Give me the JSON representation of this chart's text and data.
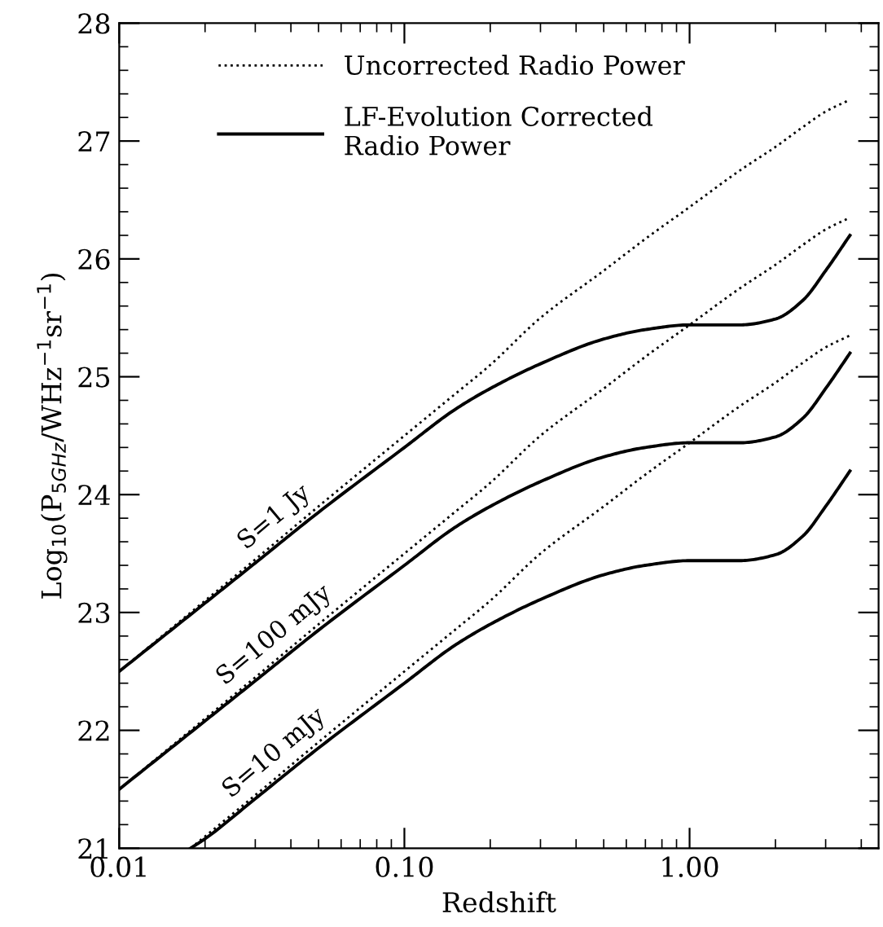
{
  "chart_data": {
    "type": "line",
    "xlabel": "Redshift",
    "ylabel": "Log$_{10}$(P$_{5GHz}$/WHz$^{−1}$sr$^{−1}$)",
    "log": "x",
    "xlim": [
      0.01,
      4.6
    ],
    "xticks": [
      {
        "value": 0.01,
        "label": "0.01"
      },
      {
        "value": 0.1,
        "label": "0.10"
      },
      {
        "value": 1,
        "label": "1.00"
      }
    ],
    "ylim": [
      21,
      28
    ],
    "yticks": [
      21,
      22,
      23,
      24,
      25,
      26,
      27,
      28
    ],
    "grid": false,
    "legend": "top left",
    "marker": "none",
    "x": [
      0.01,
      0.02,
      0.03,
      0.05,
      0.1,
      0.15,
      0.2,
      0.3,
      0.5,
      0.7,
      1,
      1.5,
      2,
      2.5,
      3,
      3.65
    ],
    "series": [
      {
        "name": "Uncorrected Radio Power",
        "color": "#000000",
        "line_style": "dotted",
        "values": [
          22.5,
          23.1,
          23.45,
          23.9,
          24.5,
          24.85,
          25.1,
          25.5,
          25.9,
          26.17,
          26.44,
          26.75,
          26.95,
          27.12,
          27.25,
          27.35
        ]
      },
      {
        "name": "LF-Evolution Corrected\nRadio Power",
        "color": "#000000",
        "line_style": "solid",
        "values": [
          22.5,
          23.08,
          23.42,
          23.85,
          24.4,
          24.72,
          24.9,
          25.11,
          25.32,
          25.4,
          25.44,
          25.44,
          25.49,
          25.65,
          25.9,
          26.2
        ]
      },
      {
        "color": "#000000",
        "line_style": "dotted",
        "values": [
          21.5,
          22.1,
          22.45,
          22.9,
          23.5,
          23.85,
          24.1,
          24.5,
          24.9,
          25.17,
          25.44,
          25.75,
          25.95,
          26.12,
          26.25,
          26.35
        ]
      },
      {
        "color": "#000000",
        "line_style": "solid",
        "values": [
          21.5,
          22.08,
          22.42,
          22.85,
          23.4,
          23.72,
          23.9,
          24.11,
          24.32,
          24.4,
          24.44,
          24.44,
          24.49,
          24.65,
          24.9,
          25.2
        ]
      },
      {
        "color": "#000000",
        "line_style": "dotted",
        "x": [
          0.0178,
          0.02,
          0.03,
          0.05,
          0.1,
          0.15,
          0.2,
          0.3,
          0.5,
          0.7,
          1,
          1.5,
          2,
          2.5,
          3,
          3.65
        ],
        "values": [
          21.0,
          21.1,
          21.45,
          21.9,
          22.5,
          22.85,
          23.1,
          23.5,
          23.9,
          24.17,
          24.44,
          24.75,
          24.95,
          25.12,
          25.25,
          25.35
        ]
      },
      {
        "color": "#000000",
        "line_style": "solid",
        "x": [
          0.0178,
          0.02,
          0.03,
          0.05,
          0.1,
          0.15,
          0.2,
          0.3,
          0.5,
          0.7,
          1,
          1.5,
          2,
          2.5,
          3,
          3.65
        ],
        "values": [
          21.0,
          21.08,
          21.42,
          21.85,
          22.4,
          22.72,
          22.9,
          23.11,
          23.32,
          23.4,
          23.44,
          23.44,
          23.49,
          23.65,
          23.9,
          24.2
        ]
      }
    ],
    "annotations": [
      "S=1 Jy",
      "S=100 mJy",
      "S=10 mJy"
    ]
  }
}
